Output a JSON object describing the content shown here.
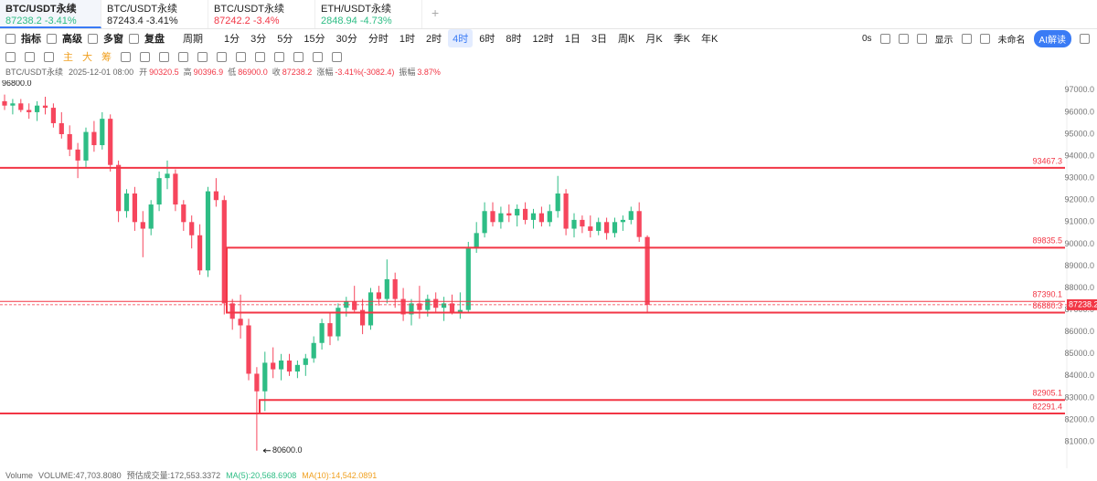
{
  "ui": {
    "tabs": [
      {
        "symbol": "BTC/USDT永续",
        "price": "87238.2",
        "change": "-3.41%"
      },
      {
        "symbol": "BTC/USDT永续",
        "price": "87243.4",
        "change": "-3.41%"
      },
      {
        "symbol": "BTC/USDT永续",
        "price": "87242.2",
        "change": "-3.4%"
      },
      {
        "symbol": "ETH/USDT永续",
        "price": "2848.94",
        "change": "-4.73%"
      }
    ],
    "buttons": [
      "指标",
      "高级",
      "多窗",
      "复盘"
    ],
    "period": "周期",
    "intervals": [
      "1分",
      "3分",
      "5分",
      "15分",
      "30分",
      "分时",
      "1时",
      "2时",
      "4时",
      "6时",
      "8时",
      "12时",
      "1日",
      "3日",
      "周K",
      "月K",
      "季K",
      "年K"
    ],
    "timer": "0s",
    "display": "显示",
    "layout_name": "未命名",
    "ai": "AI解读",
    "drawbar": [
      "主",
      "大",
      "筹"
    ],
    "info": {
      "symbol": "BTC/USDT永续",
      "time": "2025-12-01 08:00",
      "fields": [
        [
          "开",
          "90320.5"
        ],
        [
          "高",
          "90396.9"
        ],
        [
          "低",
          "86900.0"
        ],
        [
          "收",
          "87238.2"
        ],
        [
          "涨幅",
          "-3.41%(-3082.4)"
        ],
        [
          "振幅",
          "3.87%"
        ]
      ]
    },
    "volume": {
      "label": "Volume",
      "items": [
        "VOLUME:47,703.8080",
        "预估成交量:172,553.3372",
        "MA(5):20,568.6908",
        "MA(10):14,542.0891"
      ]
    }
  },
  "chart_data": {
    "type": "candlestick",
    "up_color": "#2ebd85",
    "down_color": "#f6465d",
    "level_color": "#f23645",
    "open": [
      96500,
      96300,
      96400,
      96100,
      96000,
      96300,
      96200,
      95500,
      95000,
      94300,
      93800,
      95100,
      94500,
      95700,
      93600,
      91500,
      92300,
      91000,
      90700,
      91800,
      93000,
      93200,
      91800,
      91000,
      90400,
      88800,
      92400,
      92000,
      87300,
      86600,
      86300,
      84100,
      83300,
      84600,
      84300,
      84700,
      84200,
      84500,
      84800,
      85500,
      86400,
      85800,
      87100,
      87400,
      87000,
      86300,
      87800,
      87500,
      88400,
      87500,
      86800,
      87300,
      87000,
      87500,
      87100,
      87300,
      86900,
      87000,
      89800,
      90500,
      91500,
      91000,
      91400,
      91300,
      91600,
      91100,
      91400,
      91000,
      91500,
      92300,
      90700,
      91100,
      90800,
      90600,
      91000,
      90500,
      91000,
      91100,
      91500,
      90320.5
    ],
    "high": [
      96800,
      96600,
      96600,
      96400,
      96500,
      96700,
      96400,
      96000,
      95400,
      94600,
      95300,
      95600,
      96000,
      95900,
      93800,
      92500,
      92600,
      91500,
      92000,
      93300,
      93800,
      93400,
      92000,
      91300,
      90900,
      92600,
      93000,
      92200,
      87500,
      87700,
      86600,
      84400,
      85100,
      85300,
      85000,
      85000,
      84700,
      85000,
      85800,
      86600,
      86900,
      87300,
      87600,
      88100,
      87500,
      88000,
      88100,
      89300,
      88700,
      88000,
      87500,
      88100,
      87700,
      87800,
      87600,
      87700,
      87800,
      90100,
      91000,
      91900,
      91900,
      91700,
      91800,
      91800,
      91900,
      91600,
      91700,
      91800,
      93100,
      92500,
      91400,
      91300,
      91300,
      91200,
      91200,
      91200,
      91300,
      91700,
      91900,
      90396.9
    ],
    "low": [
      96100,
      95900,
      96000,
      95700,
      95600,
      95900,
      95300,
      94800,
      94000,
      93000,
      93500,
      94200,
      94300,
      93300,
      91000,
      91200,
      90600,
      89400,
      90400,
      91500,
      92500,
      91500,
      90600,
      89800,
      88600,
      88500,
      91700,
      86800,
      86100,
      85700,
      83800,
      80600,
      82400,
      83900,
      83800,
      84000,
      83900,
      84000,
      84600,
      85200,
      85400,
      85600,
      86700,
      86900,
      85900,
      86100,
      87200,
      87300,
      87100,
      86500,
      86300,
      86600,
      86700,
      86900,
      86500,
      86800,
      86600,
      86900,
      89600,
      90300,
      90800,
      90700,
      91000,
      90800,
      90900,
      90700,
      90800,
      90800,
      91200,
      90400,
      90300,
      90500,
      90300,
      90400,
      90200,
      90300,
      90600,
      90900,
      90100,
      86900
    ],
    "close": [
      96300,
      96400,
      96100,
      96000,
      96300,
      96200,
      95500,
      95000,
      94300,
      93800,
      95100,
      94500,
      95700,
      93600,
      91500,
      92300,
      91000,
      90700,
      91800,
      93000,
      93200,
      91800,
      91000,
      90400,
      88800,
      92400,
      92000,
      87300,
      86600,
      86300,
      84100,
      83300,
      84600,
      84300,
      84700,
      84200,
      84500,
      84800,
      85500,
      86400,
      85800,
      87100,
      87400,
      87000,
      86300,
      87800,
      87500,
      88400,
      87500,
      86800,
      87300,
      87000,
      87500,
      87100,
      87300,
      86900,
      87000,
      89800,
      90500,
      91500,
      91000,
      91400,
      91300,
      91600,
      91100,
      91400,
      91000,
      91500,
      92300,
      90700,
      91100,
      90800,
      90600,
      91000,
      90500,
      91000,
      91100,
      91500,
      90320.5,
      87238.2
    ],
    "ylim": [
      79800,
      97450
    ],
    "yticks": [
      {
        "value": 97000,
        "label": "97000.0"
      },
      {
        "value": 96000,
        "label": "96000.0"
      },
      {
        "value": 95000,
        "label": "95000.0"
      },
      {
        "value": 94000,
        "label": "94000.0"
      },
      {
        "value": 93000,
        "label": "93000.0"
      },
      {
        "value": 92000,
        "label": "92000.0"
      },
      {
        "value": 91000,
        "label": "91000.0"
      },
      {
        "value": 90000,
        "label": "90000.0"
      },
      {
        "value": 89000,
        "label": "89000.0"
      },
      {
        "value": 88000,
        "label": "88000.0"
      },
      {
        "value": 87000,
        "label": "87000.0"
      },
      {
        "value": 86000,
        "label": "86000.0"
      },
      {
        "value": 85000,
        "label": "85000.0"
      },
      {
        "value": 84000,
        "label": "84000.0"
      },
      {
        "value": 83000,
        "label": "83000.0"
      },
      {
        "value": 82000,
        "label": "82000.0"
      },
      {
        "value": 81000,
        "label": "81000.0"
      }
    ],
    "levels": [
      93467.3,
      89835.5,
      87390.1,
      86880.3,
      82905.1,
      82291.4
    ],
    "last_price": 87238.2,
    "high_marker": {
      "value": 96800,
      "label": "96800.0"
    },
    "low_marker": {
      "value": 80600,
      "label": "80600.0"
    }
  }
}
